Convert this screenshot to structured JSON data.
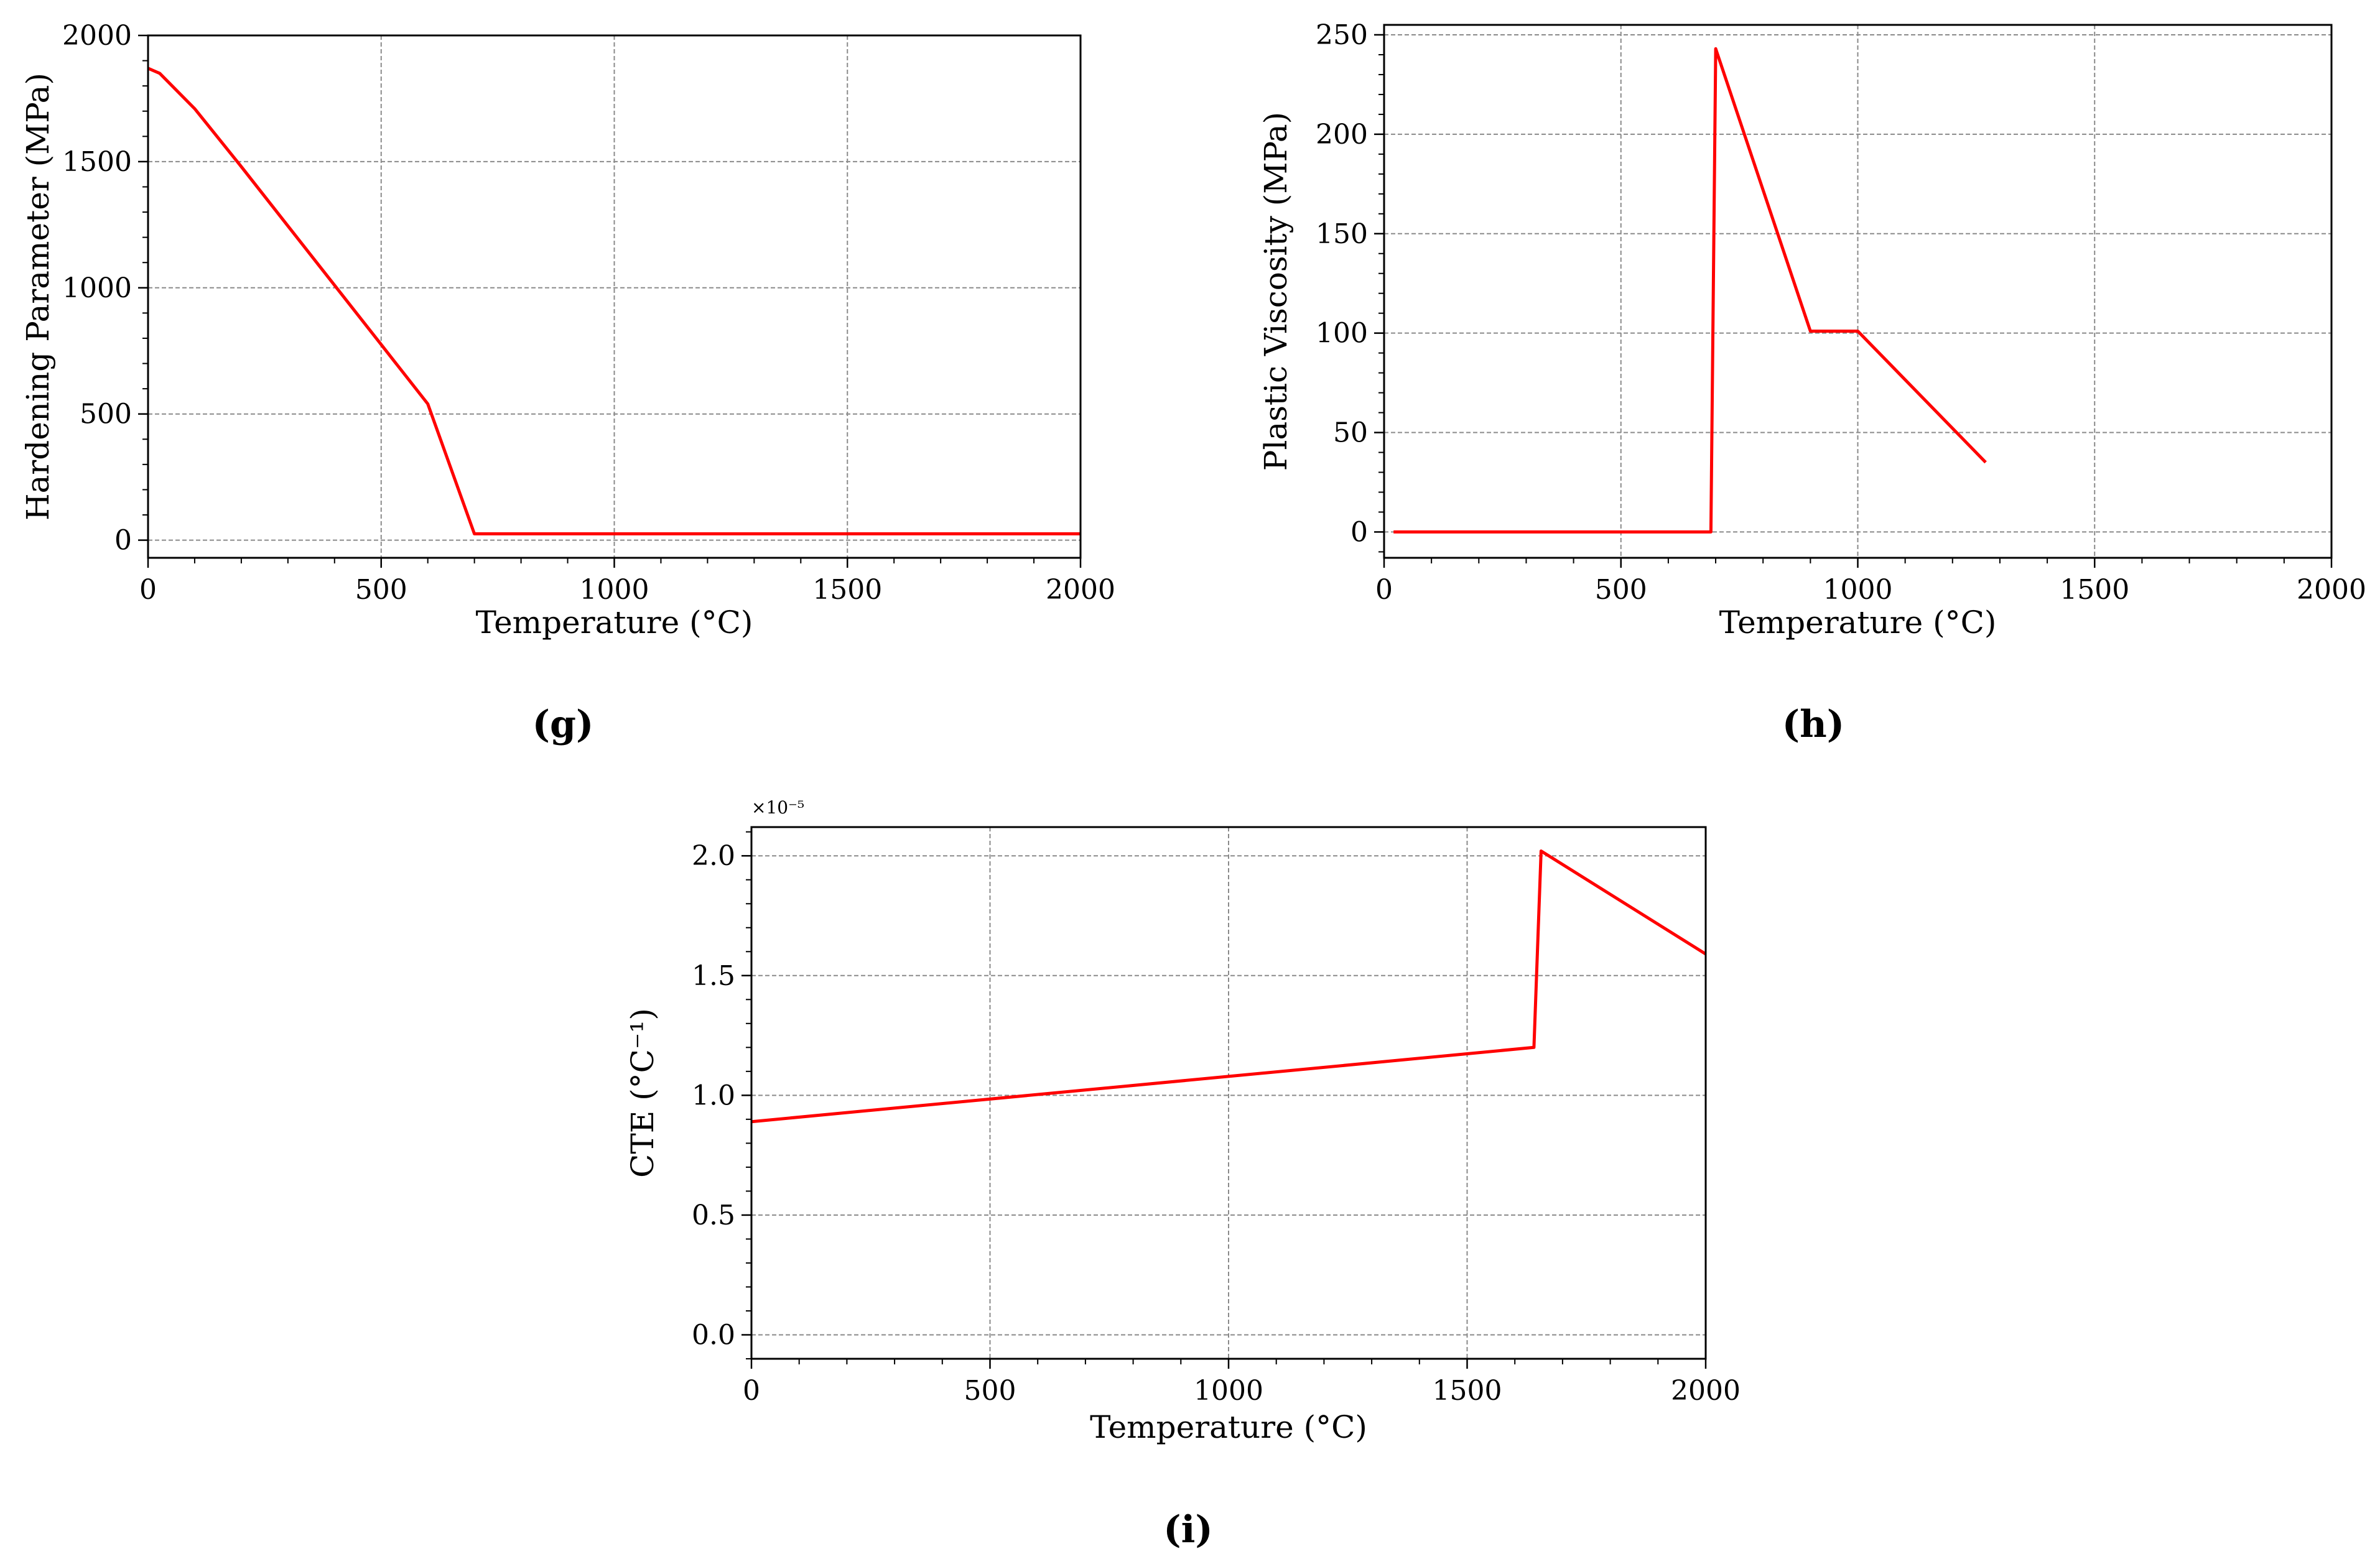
{
  "chart_data": [
    {
      "id": "g",
      "caption": "(g)",
      "type": "line",
      "xlabel": "Temperature (°C)",
      "ylabel": "Hardening Parameter (MPa)",
      "xlim": [
        0,
        2000
      ],
      "ylim": [
        -70,
        2000
      ],
      "xticks": [
        0,
        500,
        1000,
        1500,
        2000
      ],
      "yticks": [
        0,
        500,
        1000,
        1500,
        2000
      ],
      "xtick_labels": [
        "0",
        "500",
        "1000",
        "1500",
        "2000"
      ],
      "ytick_labels": [
        "0",
        "500",
        "1000",
        "1500",
        "2000"
      ],
      "grid": true,
      "color": "#ff0000",
      "series": [
        {
          "x": [
            0,
            25,
            100,
            200,
            300,
            400,
            500,
            600,
            700,
            800,
            1000,
            1500,
            2000
          ],
          "y": [
            1870,
            1850,
            1710,
            1480,
            1245,
            1010,
            775,
            540,
            25,
            25,
            25,
            25,
            25
          ]
        }
      ]
    },
    {
      "id": "h",
      "caption": "(h)",
      "type": "line",
      "xlabel": "Temperature (°C)",
      "ylabel": "Plastic Viscosity (MPa)",
      "xlim": [
        0,
        2000
      ],
      "ylim": [
        -13,
        255
      ],
      "xticks": [
        0,
        500,
        1000,
        1500,
        2000
      ],
      "yticks": [
        0,
        50,
        100,
        150,
        200,
        250
      ],
      "xtick_labels": [
        "0",
        "500",
        "1000",
        "1500",
        "2000"
      ],
      "ytick_labels": [
        "0",
        "50",
        "100",
        "150",
        "200",
        "250"
      ],
      "grid": true,
      "color": "#ff0000",
      "series": [
        {
          "x": [
            20,
            690,
            700,
            900,
            1000,
            1270
          ],
          "y": [
            0,
            0,
            243,
            101,
            101,
            35
          ]
        }
      ]
    },
    {
      "id": "i",
      "caption": "(i)",
      "type": "line",
      "xlabel": "Temperature (°C)",
      "ylabel": "CTE (°C⁻¹)",
      "offset_text": "×10⁻⁵",
      "xlim": [
        0,
        2000
      ],
      "ylim": [
        -0.1,
        2.12
      ],
      "xticks": [
        0,
        500,
        1000,
        1500,
        2000
      ],
      "yticks": [
        0.0,
        0.5,
        1.0,
        1.5,
        2.0
      ],
      "xtick_labels": [
        "0",
        "500",
        "1000",
        "1500",
        "2000"
      ],
      "ytick_labels": [
        "0.0",
        "0.5",
        "1.0",
        "1.5",
        "2.0"
      ],
      "grid": true,
      "color": "#ff0000",
      "series": [
        {
          "x": [
            0,
            1640,
            1655,
            2000
          ],
          "y": [
            0.89,
            1.2,
            2.02,
            1.59
          ]
        }
      ]
    }
  ]
}
